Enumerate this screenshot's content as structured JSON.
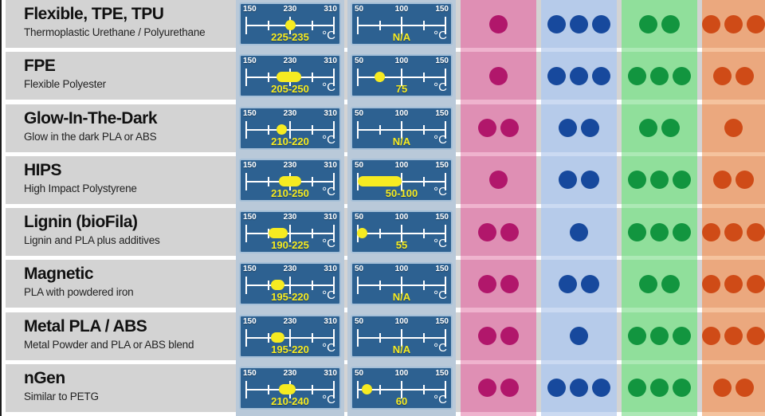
{
  "unit": "°C",
  "na_label": "N/A",
  "colors": {
    "page_bg": "#ffffff",
    "edge_line": "#1c1c1c",
    "gray_row": "#d3d3d3",
    "gauge_strip": "#b9c9d9",
    "gauge_box": "#2d6191",
    "gauge_border": "#a6c0d8",
    "axis_white": "#ffffff",
    "marker_yellow": "#f6eb21",
    "range_label_yellow": "#f6eb21",
    "title_color": "#111111",
    "desc_color": "#222222",
    "rating_cols": [
      {
        "id": "magenta",
        "strip": "#efb3ce",
        "cell": "#df8fb4",
        "dot": "#b1176b"
      },
      {
        "id": "blue",
        "strip": "#cbdaf2",
        "cell": "#b6cbea",
        "dot": "#17499d"
      },
      {
        "id": "green",
        "strip": "#ace9b5",
        "cell": "#90df9b",
        "dot": "#12953f"
      },
      {
        "id": "orange",
        "strip": "#f5c39e",
        "cell": "#eba87e",
        "dot": "#cf4b17"
      }
    ]
  },
  "chart_data": {
    "type": "table",
    "description_of_columns": [
      "material name",
      "temperature gauge 150-310 °C",
      "temperature gauge 50-150 °C",
      "magenta dot rating 1-3",
      "blue dot rating 1-3",
      "green dot rating 1-3",
      "orange dot rating 1-3"
    ],
    "scales": {
      "extruder": {
        "min": 150,
        "max": 310,
        "tick_labels": [
          "150",
          "230",
          "310"
        ]
      },
      "bed": {
        "min": 50,
        "max": 150,
        "tick_labels": [
          "50",
          "100",
          "150"
        ]
      }
    },
    "rows": [
      {
        "name": "Flexible, TPE, TPU",
        "description": "Thermoplastic Urethane / Polyurethane",
        "extruder": {
          "label": "225-235",
          "low": 225,
          "high": 235
        },
        "bed": {
          "label": "N/A",
          "low": null,
          "high": null
        },
        "ratings": [
          1,
          3,
          2,
          3
        ]
      },
      {
        "name": "FPE",
        "description": "Flexible Polyester",
        "extruder": {
          "label": "205-250",
          "low": 205,
          "high": 250
        },
        "bed": {
          "label": "75",
          "low": 75,
          "high": 75
        },
        "ratings": [
          1,
          3,
          3,
          2
        ]
      },
      {
        "name": "Glow-In-The-Dark",
        "description": "Glow in the dark PLA or ABS",
        "extruder": {
          "label": "210-220",
          "low": 210,
          "high": 220
        },
        "bed": {
          "label": "N/A",
          "low": null,
          "high": null
        },
        "ratings": [
          2,
          2,
          2,
          1
        ]
      },
      {
        "name": "HIPS",
        "description": "High Impact Polystyrene",
        "extruder": {
          "label": "210-250",
          "low": 210,
          "high": 250
        },
        "bed": {
          "label": "50-100",
          "low": 50,
          "high": 100
        },
        "ratings": [
          1,
          2,
          3,
          2
        ]
      },
      {
        "name": "Lignin (bioFila)",
        "description": "Lignin and PLA plus additives",
        "extruder": {
          "label": "190-225",
          "low": 190,
          "high": 225
        },
        "bed": {
          "label": "55",
          "low": 55,
          "high": 55
        },
        "ratings": [
          2,
          1,
          3,
          3
        ]
      },
      {
        "name": "Magnetic",
        "description": "PLA with powdered iron",
        "extruder": {
          "label": "195-220",
          "low": 195,
          "high": 220
        },
        "bed": {
          "label": "N/A",
          "low": null,
          "high": null
        },
        "ratings": [
          2,
          2,
          2,
          3
        ]
      },
      {
        "name": "Metal PLA / ABS",
        "description": "Metal Powder and PLA or ABS blend",
        "extruder": {
          "label": "195-220",
          "low": 195,
          "high": 220
        },
        "bed": {
          "label": "N/A",
          "low": null,
          "high": null
        },
        "ratings": [
          2,
          1,
          3,
          3
        ]
      },
      {
        "name": "nGen",
        "description": "Similar to PETG",
        "extruder": {
          "label": "210-240",
          "low": 210,
          "high": 240
        },
        "bed": {
          "label": "60",
          "low": 60,
          "high": 60
        },
        "ratings": [
          2,
          3,
          3,
          2
        ]
      }
    ]
  }
}
